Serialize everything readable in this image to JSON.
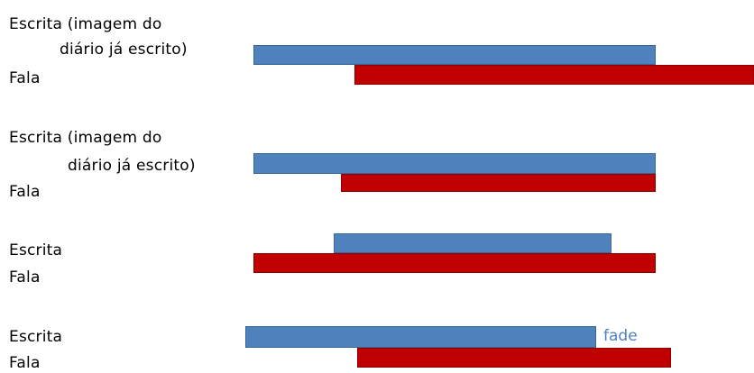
{
  "colors": {
    "escrita_bar": "#4f81bd",
    "fala_bar": "#c00000",
    "fade_text": "#4f81bd"
  },
  "rows": [
    {
      "escrita_label_line1": "Escrita  (imagem do",
      "escrita_label_line2": "diário já escrito)",
      "fala_label": "Fala"
    },
    {
      "escrita_label_line1": "Escrita  (imagem do",
      "escrita_label_line2": "diário já escrito)",
      "fala_label": "Fala"
    },
    {
      "escrita_label": "Escrita",
      "fala_label": "Fala"
    },
    {
      "escrita_label": "Escrita",
      "fala_label": "Fala",
      "annotation": "fade"
    }
  ]
}
